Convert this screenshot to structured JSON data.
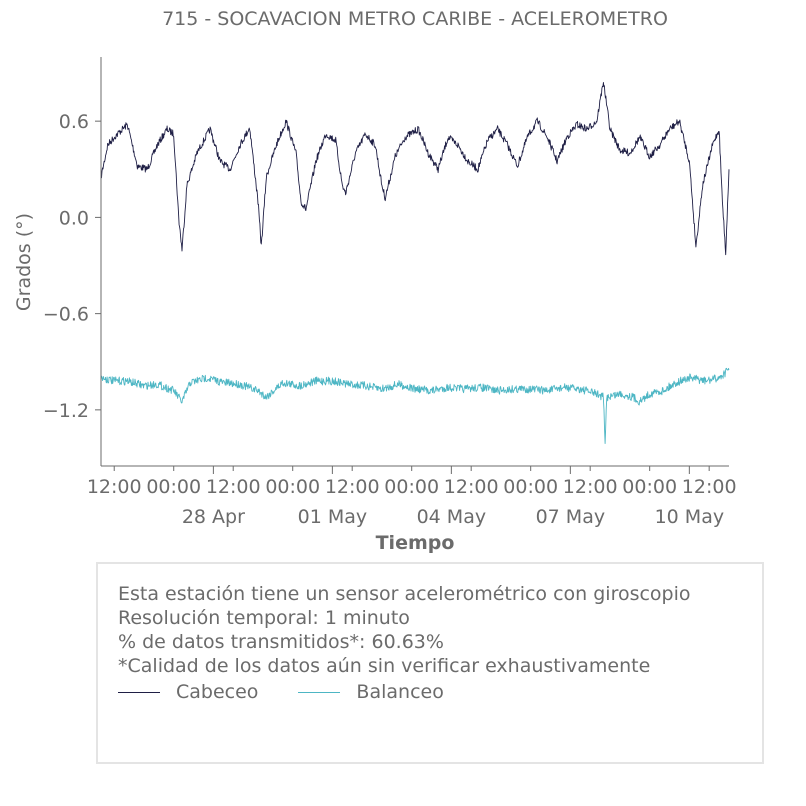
{
  "chart_data": {
    "type": "line",
    "title": "715 - SOCAVACION METRO CARIBE - ACELEROMETRO",
    "xlabel": "Tiempo",
    "ylabel": "Grados (°)",
    "ylim": [
      -1.55,
      1.0
    ],
    "xlim": [
      "2025-04-25T04:00",
      "2025-05-11T00:00"
    ],
    "yticks": [
      {
        "value": 0.6,
        "label": "0.6"
      },
      {
        "value": 0.0,
        "label": "0.0"
      },
      {
        "value": -0.6,
        "label": "−0.6"
      },
      {
        "value": -1.2,
        "label": "−1.2"
      }
    ],
    "xticks_minor": [
      {
        "time": "2025-04-25T12:00",
        "label": "12:00"
      },
      {
        "time": "2025-04-27T00:00",
        "label": "00:00"
      },
      {
        "time": "2025-04-28T12:00",
        "label": "12:00"
      },
      {
        "time": "2025-04-30T00:00",
        "label": "00:00"
      },
      {
        "time": "2025-05-01T12:00",
        "label": "12:00"
      },
      {
        "time": "2025-05-03T00:00",
        "label": "00:00"
      },
      {
        "time": "2025-05-04T12:00",
        "label": "12:00"
      },
      {
        "time": "2025-05-06T00:00",
        "label": "00:00"
      },
      {
        "time": "2025-05-07T12:00",
        "label": "12:00"
      },
      {
        "time": "2025-05-09T00:00",
        "label": "00:00"
      },
      {
        "time": "2025-05-10T12:00",
        "label": "12:00"
      }
    ],
    "xticks_major": [
      {
        "time": "2025-04-28T00:00",
        "label": "28 Apr"
      },
      {
        "time": "2025-05-01T00:00",
        "label": "01 May"
      },
      {
        "time": "2025-05-04T00:00",
        "label": "04 May"
      },
      {
        "time": "2025-05-07T00:00",
        "label": "07 May"
      },
      {
        "time": "2025-05-10T00:00",
        "label": "10 May"
      }
    ],
    "series": [
      {
        "name": "Cabeceo",
        "color": "#1f1f45",
        "points": [
          [
            "2025-04-25T04:00",
            0.25
          ],
          [
            "2025-04-25T08:00",
            0.45
          ],
          [
            "2025-04-25T12:00",
            0.5
          ],
          [
            "2025-04-25T20:00",
            0.58
          ],
          [
            "2025-04-26T02:00",
            0.32
          ],
          [
            "2025-04-26T08:00",
            0.3
          ],
          [
            "2025-04-26T14:00",
            0.45
          ],
          [
            "2025-04-26T20:00",
            0.55
          ],
          [
            "2025-04-27T00:00",
            0.52
          ],
          [
            "2025-04-27T03:00",
            0.0
          ],
          [
            "2025-04-27T05:00",
            -0.2
          ],
          [
            "2025-04-27T08:00",
            0.2
          ],
          [
            "2025-04-27T14:00",
            0.4
          ],
          [
            "2025-04-27T22:00",
            0.55
          ],
          [
            "2025-04-28T04:00",
            0.35
          ],
          [
            "2025-04-28T10:00",
            0.3
          ],
          [
            "2025-04-28T16:00",
            0.45
          ],
          [
            "2025-04-28T22:00",
            0.56
          ],
          [
            "2025-04-29T03:00",
            0.1
          ],
          [
            "2025-04-29T05:00",
            -0.18
          ],
          [
            "2025-04-29T08:00",
            0.25
          ],
          [
            "2025-04-29T14:00",
            0.45
          ],
          [
            "2025-04-29T20:00",
            0.6
          ],
          [
            "2025-04-30T02:00",
            0.4
          ],
          [
            "2025-04-30T05:00",
            0.1
          ],
          [
            "2025-04-30T08:00",
            0.05
          ],
          [
            "2025-04-30T14:00",
            0.35
          ],
          [
            "2025-04-30T20:00",
            0.52
          ],
          [
            "2025-05-01T02:00",
            0.48
          ],
          [
            "2025-05-01T06:00",
            0.2
          ],
          [
            "2025-05-01T08:00",
            0.15
          ],
          [
            "2025-05-01T14:00",
            0.4
          ],
          [
            "2025-05-01T20:00",
            0.52
          ],
          [
            "2025-05-02T02:00",
            0.45
          ],
          [
            "2025-05-02T06:00",
            0.2
          ],
          [
            "2025-05-02T08:00",
            0.12
          ],
          [
            "2025-05-02T14:00",
            0.38
          ],
          [
            "2025-05-02T20:00",
            0.5
          ],
          [
            "2025-05-03T04:00",
            0.55
          ],
          [
            "2025-05-03T10:00",
            0.4
          ],
          [
            "2025-05-03T16:00",
            0.3
          ],
          [
            "2025-05-03T22:00",
            0.5
          ],
          [
            "2025-05-04T04:00",
            0.45
          ],
          [
            "2025-05-04T10:00",
            0.35
          ],
          [
            "2025-05-04T16:00",
            0.3
          ],
          [
            "2025-05-04T22:00",
            0.48
          ],
          [
            "2025-05-05T04:00",
            0.55
          ],
          [
            "2025-05-05T10:00",
            0.45
          ],
          [
            "2025-05-05T16:00",
            0.32
          ],
          [
            "2025-05-05T22:00",
            0.5
          ],
          [
            "2025-05-06T04:00",
            0.6
          ],
          [
            "2025-05-06T10:00",
            0.5
          ],
          [
            "2025-05-06T16:00",
            0.35
          ],
          [
            "2025-05-06T22:00",
            0.5
          ],
          [
            "2025-05-07T04:00",
            0.58
          ],
          [
            "2025-05-07T10:00",
            0.55
          ],
          [
            "2025-05-07T16:00",
            0.6
          ],
          [
            "2025-05-07T20:00",
            0.85
          ],
          [
            "2025-05-08T00:00",
            0.55
          ],
          [
            "2025-05-08T06:00",
            0.42
          ],
          [
            "2025-05-08T12:00",
            0.4
          ],
          [
            "2025-05-08T18:00",
            0.5
          ],
          [
            "2025-05-09T00:00",
            0.38
          ],
          [
            "2025-05-09T06:00",
            0.45
          ],
          [
            "2025-05-09T12:00",
            0.55
          ],
          [
            "2025-05-09T18:00",
            0.6
          ],
          [
            "2025-05-10T00:00",
            0.35
          ],
          [
            "2025-05-10T04:00",
            -0.18
          ],
          [
            "2025-05-10T08:00",
            0.2
          ],
          [
            "2025-05-10T14:00",
            0.45
          ],
          [
            "2025-05-10T18:00",
            0.55
          ],
          [
            "2025-05-10T20:00",
            0.1
          ],
          [
            "2025-05-10T22:00",
            -0.22
          ],
          [
            "2025-05-11T00:00",
            0.3
          ]
        ]
      },
      {
        "name": "Balanceo",
        "color": "#4db6c4",
        "points": [
          [
            "2025-04-25T04:00",
            -1.0
          ],
          [
            "2025-04-25T12:00",
            -1.02
          ],
          [
            "2025-04-25T20:00",
            -1.02
          ],
          [
            "2025-04-26T06:00",
            -1.05
          ],
          [
            "2025-04-26T14:00",
            -1.04
          ],
          [
            "2025-04-27T00:00",
            -1.08
          ],
          [
            "2025-04-27T05:00",
            -1.15
          ],
          [
            "2025-04-27T10:00",
            -1.03
          ],
          [
            "2025-04-27T20:00",
            -1.0
          ],
          [
            "2025-04-28T06:00",
            -1.03
          ],
          [
            "2025-04-28T16:00",
            -1.04
          ],
          [
            "2025-04-29T03:00",
            -1.08
          ],
          [
            "2025-04-29T08:00",
            -1.12
          ],
          [
            "2025-04-29T18:00",
            -1.03
          ],
          [
            "2025-04-30T04:00",
            -1.05
          ],
          [
            "2025-04-30T14:00",
            -1.02
          ],
          [
            "2025-05-01T00:00",
            -1.02
          ],
          [
            "2025-05-01T10:00",
            -1.04
          ],
          [
            "2025-05-01T20:00",
            -1.05
          ],
          [
            "2025-05-02T06:00",
            -1.07
          ],
          [
            "2025-05-02T16:00",
            -1.04
          ],
          [
            "2025-05-03T02:00",
            -1.07
          ],
          [
            "2025-05-03T12:00",
            -1.08
          ],
          [
            "2025-05-03T22:00",
            -1.06
          ],
          [
            "2025-05-04T08:00",
            -1.07
          ],
          [
            "2025-05-04T18:00",
            -1.06
          ],
          [
            "2025-05-05T04:00",
            -1.08
          ],
          [
            "2025-05-05T14:00",
            -1.07
          ],
          [
            "2025-05-06T00:00",
            -1.07
          ],
          [
            "2025-05-06T10:00",
            -1.08
          ],
          [
            "2025-05-06T20:00",
            -1.06
          ],
          [
            "2025-05-07T06:00",
            -1.07
          ],
          [
            "2025-05-07T16:00",
            -1.1
          ],
          [
            "2025-05-07T20:00",
            -1.12
          ],
          [
            "2025-05-07T21:00",
            -1.42
          ],
          [
            "2025-05-07T22:00",
            -1.12
          ],
          [
            "2025-05-08T06:00",
            -1.1
          ],
          [
            "2025-05-08T14:00",
            -1.12
          ],
          [
            "2025-05-08T18:00",
            -1.15
          ],
          [
            "2025-05-09T00:00",
            -1.1
          ],
          [
            "2025-05-09T08:00",
            -1.08
          ],
          [
            "2025-05-09T16:00",
            -1.03
          ],
          [
            "2025-05-10T00:00",
            -1.0
          ],
          [
            "2025-05-10T10:00",
            -1.02
          ],
          [
            "2025-05-10T18:00",
            -1.0
          ],
          [
            "2025-05-11T00:00",
            -0.95
          ]
        ]
      }
    ]
  },
  "info": {
    "line1": "Esta estación tiene un sensor acelerométrico con giroscopio",
    "line2": "Resolución temporal: 1 minuto",
    "line3": "% de datos transmitidos*: 60.63%",
    "line4": "*Calidad de los datos aún sin verificar exhaustivamente"
  },
  "legend": {
    "items": [
      {
        "label": "Cabeceo",
        "color": "#1f1f45"
      },
      {
        "label": "Balanceo",
        "color": "#4db6c4"
      }
    ]
  }
}
